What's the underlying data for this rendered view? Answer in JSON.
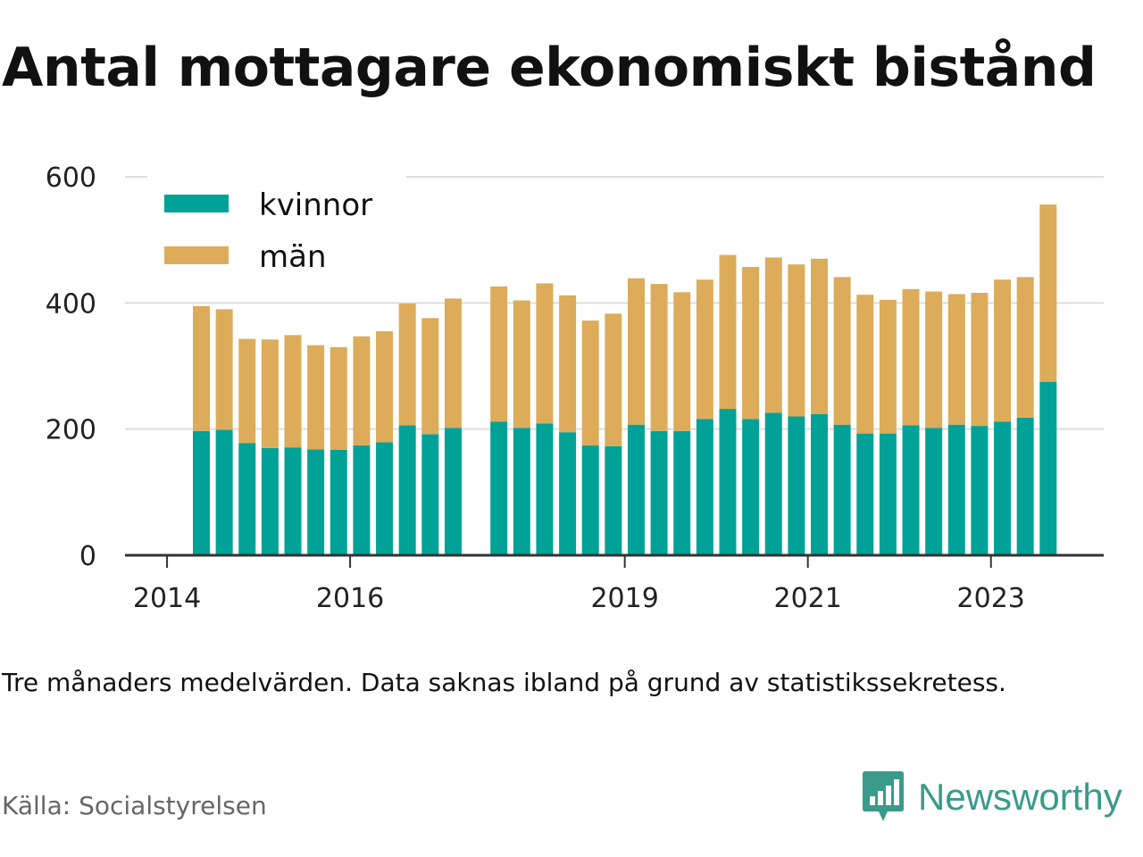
{
  "title": "Antal mottagare ekonomiskt bistånd",
  "note": "Tre månaders medelvärden. Data saknas ibland på grund av statistikssekretess.",
  "source": "Källa: Socialstyrelsen",
  "brand": "Newsworthy",
  "colors": {
    "kvinnor": "#00a297",
    "man": "#dcac5a",
    "grid": "#dddddd",
    "axis": "#333333",
    "brand": "#3a9a8b"
  },
  "chart_data": {
    "type": "bar",
    "stacked": true,
    "ylim": [
      0,
      600
    ],
    "yticks": [
      0,
      200,
      400,
      600
    ],
    "xticks": [
      "2014",
      "2016",
      "2019",
      "2021",
      "2023"
    ],
    "legend": {
      "position": "top-left",
      "entries": [
        "kvinnor",
        "män"
      ]
    },
    "grid": true,
    "categories": [
      "2014-Q2",
      "2014-Q3",
      "2014-Q4",
      "2015-Q1",
      "2015-Q2",
      "2015-Q3",
      "2015-Q4",
      "2016-Q1",
      "2016-Q2",
      "2016-Q3",
      "2016-Q4",
      "2017-Q1",
      "2017-Q2",
      "2017-Q3",
      "2017-Q4",
      "2018-Q1",
      "2018-Q2",
      "2018-Q3",
      "2018-Q4",
      "2019-Q1",
      "2019-Q2",
      "2019-Q3",
      "2019-Q4",
      "2020-Q1",
      "2020-Q2",
      "2020-Q3",
      "2020-Q4",
      "2021-Q1",
      "2021-Q2",
      "2021-Q3",
      "2021-Q4",
      "2022-Q1",
      "2022-Q2",
      "2022-Q3",
      "2022-Q4",
      "2023-Q1",
      "2023-Q2",
      "2023-Q3"
    ],
    "series": [
      {
        "name": "kvinnor",
        "values": [
          197,
          199,
          178,
          170,
          171,
          168,
          167,
          174,
          179,
          206,
          192,
          202,
          null,
          212,
          202,
          209,
          195,
          174,
          173,
          207,
          197,
          197,
          216,
          232,
          216,
          226,
          220,
          224,
          207,
          193,
          193,
          206,
          202,
          207,
          205,
          212,
          218,
          275
        ]
      },
      {
        "name": "män",
        "values": [
          198,
          191,
          165,
          172,
          178,
          165,
          163,
          173,
          176,
          193,
          184,
          205,
          null,
          214,
          202,
          222,
          217,
          198,
          210,
          232,
          233,
          220,
          221,
          244,
          241,
          246,
          241,
          246,
          234,
          220,
          212,
          216,
          216,
          207,
          211,
          225,
          223,
          281
        ]
      }
    ]
  }
}
